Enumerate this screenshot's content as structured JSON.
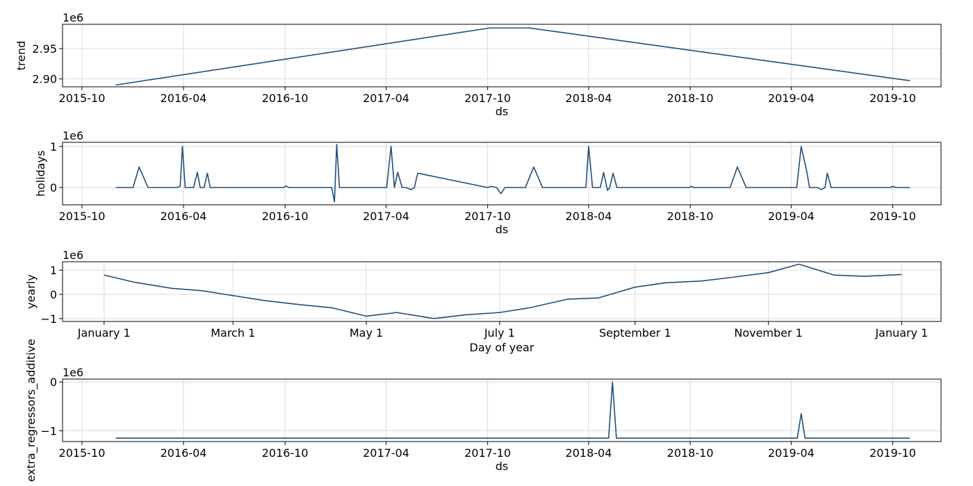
{
  "chart_data": [
    {
      "id": "trend",
      "type": "line",
      "ylabel": "trend",
      "xlabel": "ds",
      "offset_text": "1e6",
      "x_kind": "date",
      "xlim": [
        "2015-08-27",
        "2019-12-27"
      ],
      "ylim": [
        2.887,
        2.99
      ],
      "xticks": [
        {
          "value": "2015-10-01",
          "label": "2015-10"
        },
        {
          "value": "2016-04-01",
          "label": "2016-04"
        },
        {
          "value": "2016-10-01",
          "label": "2016-10"
        },
        {
          "value": "2017-04-01",
          "label": "2017-04"
        },
        {
          "value": "2017-10-01",
          "label": "2017-10"
        },
        {
          "value": "2018-04-01",
          "label": "2018-04"
        },
        {
          "value": "2018-10-01",
          "label": "2018-10"
        },
        {
          "value": "2019-04-01",
          "label": "2019-04"
        },
        {
          "value": "2019-10-01",
          "label": "2019-10"
        }
      ],
      "yticks": [
        {
          "value": 2.9,
          "label": "2.90"
        },
        {
          "value": 2.95,
          "label": "2.95"
        }
      ],
      "series": [
        {
          "x": [
            "2015-12-01",
            "2017-10-05",
            "2017-12-15",
            "2019-11-01"
          ],
          "y": [
            2.89,
            2.984,
            2.984,
            2.897
          ]
        }
      ]
    },
    {
      "id": "holidays",
      "type": "line",
      "ylabel": "holidays",
      "xlabel": "ds",
      "offset_text": "1e6",
      "x_kind": "date",
      "xlim": [
        "2015-08-27",
        "2019-12-27"
      ],
      "ylim": [
        -0.42,
        1.1
      ],
      "xticks": [
        {
          "value": "2015-10-01",
          "label": "2015-10"
        },
        {
          "value": "2016-04-01",
          "label": "2016-04"
        },
        {
          "value": "2016-10-01",
          "label": "2016-10"
        },
        {
          "value": "2017-04-01",
          "label": "2017-04"
        },
        {
          "value": "2017-10-01",
          "label": "2017-10"
        },
        {
          "value": "2018-04-01",
          "label": "2018-04"
        },
        {
          "value": "2018-10-01",
          "label": "2018-10"
        },
        {
          "value": "2019-04-01",
          "label": "2019-04"
        },
        {
          "value": "2019-10-01",
          "label": "2019-10"
        }
      ],
      "yticks": [
        {
          "value": 0,
          "label": "0"
        },
        {
          "value": 1,
          "label": "1"
        }
      ],
      "series": [
        {
          "x": [
            "2015-12-01",
            "2016-01-01",
            "2016-01-12",
            "2016-01-28",
            "2016-03-20",
            "2016-03-26",
            "2016-03-30",
            "2016-04-04",
            "2016-04-19",
            "2016-04-26",
            "2016-05-01",
            "2016-05-08",
            "2016-05-14",
            "2016-05-19",
            "2016-09-28",
            "2016-10-03",
            "2016-10-08",
            "2016-12-24",
            "2016-12-29",
            "2017-01-02",
            "2017-01-07",
            "2017-04-02",
            "2017-04-10",
            "2017-04-16",
            "2017-04-22",
            "2017-04-30",
            "2017-05-07",
            "2017-05-16",
            "2017-05-22",
            "2017-05-28",
            "2017-10-01",
            "2017-10-07",
            "2017-10-17",
            "2017-10-25",
            "2017-11-01",
            "2017-12-08",
            "2017-12-23",
            "2018-01-08",
            "2018-03-27",
            "2018-04-01",
            "2018-04-08",
            "2018-04-22",
            "2018-04-28",
            "2018-05-05",
            "2018-05-09",
            "2018-05-15",
            "2018-05-22",
            "2018-09-29",
            "2018-10-03",
            "2018-10-08",
            "2018-12-12",
            "2018-12-25",
            "2019-01-10",
            "2019-04-11",
            "2019-04-19",
            "2019-04-29",
            "2019-05-04",
            "2019-05-19",
            "2019-05-25",
            "2019-06-01",
            "2019-06-05",
            "2019-06-12",
            "2019-09-27",
            "2019-10-01",
            "2019-10-07",
            "2019-11-01"
          ],
          "y": [
            0,
            0,
            0.5,
            0,
            0,
            0.03,
            1.0,
            0,
            0,
            0.37,
            0,
            0,
            0.35,
            0,
            0,
            0.04,
            0,
            0,
            -0.35,
            1.05,
            0,
            0,
            1.0,
            0,
            0.37,
            0,
            0,
            -0.05,
            0,
            0.35,
            0,
            0.03,
            0,
            -0.15,
            0,
            0,
            0.5,
            0,
            0,
            1.0,
            0,
            0,
            0.37,
            -0.07,
            0,
            0.35,
            0,
            0,
            0.03,
            0,
            0,
            0.5,
            0,
            0,
            1.0,
            0.4,
            0,
            0,
            -0.05,
            0,
            0.35,
            0,
            0,
            0.03,
            0,
            0
          ]
        }
      ]
    },
    {
      "id": "yearly",
      "type": "line",
      "ylabel": "yearly",
      "xlabel": "Day of year",
      "offset_text": "1e6",
      "x_kind": "date",
      "xlim": [
        "2016-12-13",
        "2018-01-19"
      ],
      "ylim": [
        -1.12,
        1.35
      ],
      "xticks": [
        {
          "value": "2017-01-01",
          "label": "January 1"
        },
        {
          "value": "2017-03-01",
          "label": "March 1"
        },
        {
          "value": "2017-05-01",
          "label": "May 1"
        },
        {
          "value": "2017-07-01",
          "label": "July 1"
        },
        {
          "value": "2017-09-01",
          "label": "September 1"
        },
        {
          "value": "2017-11-01",
          "label": "November 1"
        },
        {
          "value": "2018-01-01",
          "label": "January 1"
        }
      ],
      "yticks": [
        {
          "value": -1,
          "label": "−1"
        },
        {
          "value": 0,
          "label": "0"
        },
        {
          "value": 1,
          "label": "1"
        }
      ],
      "series": [
        {
          "x": [
            "2017-01-01",
            "2017-01-15",
            "2017-02-01",
            "2017-02-15",
            "2017-03-01",
            "2017-03-15",
            "2017-04-01",
            "2017-04-15",
            "2017-05-01",
            "2017-05-15",
            "2017-06-01",
            "2017-06-15",
            "2017-07-01",
            "2017-07-15",
            "2017-08-01",
            "2017-08-15",
            "2017-09-01",
            "2017-09-15",
            "2017-10-01",
            "2017-10-15",
            "2017-11-01",
            "2017-11-15",
            "2017-12-01",
            "2017-12-15",
            "2018-01-01"
          ],
          "y": [
            0.8,
            0.5,
            0.25,
            0.15,
            -0.05,
            -0.25,
            -0.43,
            -0.55,
            -0.9,
            -0.75,
            -1.0,
            -0.85,
            -0.75,
            -0.55,
            -0.2,
            -0.15,
            0.3,
            0.48,
            0.55,
            0.7,
            0.9,
            1.25,
            0.8,
            0.75,
            0.82
          ]
        }
      ]
    },
    {
      "id": "extra_regressors_additive",
      "type": "line",
      "ylabel": "extra_regressors_additive",
      "xlabel": "ds",
      "offset_text": "1e6",
      "x_kind": "date",
      "xlim": [
        "2015-08-27",
        "2019-12-27"
      ],
      "ylim": [
        -1.22,
        0.06
      ],
      "xticks": [
        {
          "value": "2015-10-01",
          "label": "2015-10"
        },
        {
          "value": "2016-04-01",
          "label": "2016-04"
        },
        {
          "value": "2016-10-01",
          "label": "2016-10"
        },
        {
          "value": "2017-04-01",
          "label": "2017-04"
        },
        {
          "value": "2017-10-01",
          "label": "2017-10"
        },
        {
          "value": "2018-04-01",
          "label": "2018-04"
        },
        {
          "value": "2018-10-01",
          "label": "2018-10"
        },
        {
          "value": "2019-04-01",
          "label": "2019-04"
        },
        {
          "value": "2019-10-01",
          "label": "2019-10"
        }
      ],
      "yticks": [
        {
          "value": -1,
          "label": "−1"
        },
        {
          "value": 0,
          "label": "0"
        }
      ],
      "series": [
        {
          "x": [
            "2015-12-01",
            "2018-05-07",
            "2018-05-14",
            "2018-05-21",
            "2019-04-12",
            "2019-04-19",
            "2019-04-26",
            "2019-11-01"
          ],
          "y": [
            -1.15,
            -1.15,
            0.0,
            -1.15,
            -1.15,
            -0.65,
            -1.15,
            -1.15
          ]
        }
      ]
    }
  ],
  "colors": {
    "series": "#1f4e79",
    "grid": "#d9d9d9",
    "frame": "#000000"
  }
}
